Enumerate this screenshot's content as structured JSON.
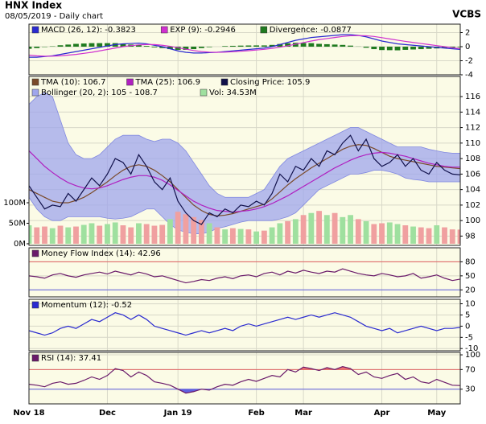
{
  "header": {
    "title": "HNX Index",
    "subtitle": "08/05/2019 - Daily chart",
    "source": "VCBS"
  },
  "chart_data": [
    {
      "type": "line",
      "ylim": [
        -4,
        3.2
      ],
      "yticks": [
        2,
        0,
        -2,
        -4
      ],
      "series": [
        {
          "name": "MACD (26, 12): -0.3823",
          "type": "line",
          "color": "#2a2ad0",
          "values": [
            -1.5,
            -1.5,
            -1.4,
            -1.3,
            -1.1,
            -0.9,
            -0.7,
            -0.5,
            -0.3,
            -0.1,
            0.1,
            0.3,
            0.4,
            0.45,
            0.5,
            0.4,
            0.2,
            0,
            -0.3,
            -0.6,
            -0.8,
            -0.9,
            -0.9,
            -0.85,
            -0.8,
            -0.7,
            -0.6,
            -0.5,
            -0.4,
            -0.3,
            -0.2,
            0,
            0.3,
            0.6,
            0.9,
            1.1,
            1.3,
            1.4,
            1.5,
            1.6,
            1.7,
            1.7,
            1.6,
            1.4,
            1.1,
            0.8,
            0.6,
            0.4,
            0.3,
            0.2,
            0.1,
            0,
            -0.1,
            -0.2,
            -0.3,
            -0.3823
          ]
        },
        {
          "name": "EXP (9): -0.2946",
          "type": "line",
          "color": "#d030d0",
          "values": [
            -1.2,
            -1.3,
            -1.35,
            -1.35,
            -1.3,
            -1.2,
            -1.1,
            -0.95,
            -0.8,
            -0.6,
            -0.4,
            -0.2,
            0,
            0.15,
            0.25,
            0.3,
            0.3,
            0.2,
            0.05,
            -0.15,
            -0.35,
            -0.55,
            -0.7,
            -0.78,
            -0.8,
            -0.78,
            -0.72,
            -0.65,
            -0.57,
            -0.48,
            -0.38,
            -0.25,
            -0.08,
            0.12,
            0.35,
            0.58,
            0.8,
            1,
            1.15,
            1.3,
            1.45,
            1.55,
            1.58,
            1.55,
            1.45,
            1.28,
            1.1,
            0.92,
            0.75,
            0.6,
            0.45,
            0.3,
            0.15,
            0,
            -0.15,
            -0.2946
          ]
        },
        {
          "name": "Divergence: -0.0877",
          "type": "bar",
          "color": "#1f7a1f",
          "values": [
            -0.3,
            -0.2,
            -0.05,
            0.05,
            0.2,
            0.3,
            0.4,
            0.45,
            0.5,
            0.5,
            0.5,
            0.5,
            0.4,
            0.3,
            0.25,
            0.1,
            -0.1,
            -0.2,
            -0.35,
            -0.45,
            -0.45,
            -0.35,
            -0.2,
            -0.07,
            0,
            0.08,
            0.12,
            0.15,
            0.17,
            0.18,
            0.18,
            0.25,
            0.38,
            0.48,
            0.55,
            0.52,
            0.5,
            0.4,
            0.35,
            0.3,
            0.25,
            0.15,
            0.02,
            -0.15,
            -0.35,
            -0.48,
            -0.5,
            -0.52,
            -0.45,
            -0.4,
            -0.35,
            -0.3,
            -0.25,
            -0.2,
            -0.15,
            -0.0877
          ]
        }
      ]
    },
    {
      "type": "line",
      "ylim": [
        96.8,
        118.6
      ],
      "yticks": [
        98,
        100,
        102,
        104,
        106,
        108,
        110,
        112,
        114,
        116
      ],
      "y2lim": [
        -4,
        408
      ],
      "y2ticks": [
        {
          "value": 100,
          "label": "100M"
        },
        {
          "value": 50,
          "label": "50M"
        },
        {
          "value": 0,
          "label": "0M"
        }
      ],
      "series": [
        {
          "name": "TMA (10): 106.7",
          "type": "line",
          "color": "#7a4a2a",
          "values": [
            104,
            103.5,
            103,
            102.5,
            102.3,
            102.3,
            102.6,
            103,
            103.6,
            104.3,
            105,
            105.8,
            106.5,
            107,
            107.2,
            107,
            106.5,
            105.8,
            105,
            104,
            103,
            102,
            101.3,
            100.8,
            100.6,
            100.7,
            100.9,
            101.2,
            101.5,
            101.8,
            102.1,
            102.8,
            103.7,
            104.6,
            105.4,
            106.1,
            106.8,
            107.4,
            108,
            108.6,
            109.2,
            109.6,
            109.8,
            109.7,
            109.3,
            108.8,
            108.3,
            108,
            107.8,
            107.6,
            107.4,
            107.2,
            107,
            106.9,
            106.8,
            106.7
          ]
        },
        {
          "name": "TMA (25): 106.9",
          "type": "line",
          "color": "#b020c0",
          "values": [
            109,
            108,
            107,
            106.2,
            105.5,
            104.9,
            104.5,
            104.2,
            104.1,
            104.2,
            104.5,
            104.9,
            105.3,
            105.6,
            105.8,
            105.8,
            105.6,
            105.2,
            104.6,
            103.9,
            103.2,
            102.5,
            102,
            101.6,
            101.3,
            101.2,
            101.1,
            101.2,
            101.3,
            101.5,
            101.8,
            102.2,
            102.7,
            103.2,
            103.8,
            104.4,
            105,
            105.6,
            106.2,
            106.8,
            107.3,
            107.8,
            108.2,
            108.5,
            108.7,
            108.8,
            108.7,
            108.5,
            108.3,
            108,
            107.7,
            107.4,
            107.2,
            107,
            106.9,
            106.9
          ]
        },
        {
          "name": "Closing Price: 105.9",
          "type": "line",
          "color": "#10104a",
          "values": [
            104.5,
            103,
            101.5,
            102,
            101.8,
            103.5,
            102.5,
            104,
            105.5,
            104.5,
            106,
            108,
            107.5,
            106,
            108.5,
            107,
            105,
            104,
            105.5,
            102.5,
            101,
            100,
            99.5,
            101,
            100.5,
            101.5,
            101,
            102,
            101.8,
            102.5,
            102,
            103.5,
            106,
            105,
            107,
            106.5,
            108,
            107,
            109,
            108.5,
            110,
            111,
            109,
            110.5,
            108,
            107,
            107.5,
            108.5,
            107,
            108,
            106.5,
            106,
            107.5,
            106.5,
            106,
            105.9
          ]
        },
        {
          "name": "Bollinger (20, 2): 105 - 108.7",
          "type": "band",
          "color": "#9fa6ec",
          "upper": [
            115,
            116,
            116.5,
            116,
            113,
            110,
            108.5,
            108,
            108,
            108.5,
            109.5,
            110.5,
            111,
            111,
            111,
            110.5,
            110.2,
            110.5,
            110.5,
            110,
            109,
            107.5,
            106,
            104.5,
            103.5,
            103,
            103,
            103,
            103,
            103.5,
            104,
            105.5,
            107,
            108,
            108.5,
            109,
            109.5,
            110,
            110.5,
            111,
            111.5,
            112,
            112,
            111.5,
            111,
            110.5,
            110,
            109.5,
            109.5,
            109.5,
            109.5,
            109.2,
            109,
            108.8,
            108.7,
            108.7
          ],
          "lower": [
            103,
            101.5,
            100.5,
            100,
            100,
            100.5,
            100.5,
            100.5,
            100.5,
            100.5,
            100.3,
            100.2,
            100.3,
            100.5,
            101,
            101.5,
            101.5,
            100.5,
            99.5,
            98.8,
            98.5,
            98.3,
            98.3,
            98.5,
            99,
            99.2,
            99.5,
            99.8,
            100,
            100,
            100,
            100,
            100.2,
            100.5,
            101,
            102,
            103,
            104,
            104.5,
            105,
            105.5,
            106,
            106,
            106.2,
            106.5,
            106.5,
            106.3,
            106,
            105.5,
            105.3,
            105.2,
            105,
            105,
            105,
            105,
            105
          ]
        },
        {
          "name": "Vol: 34.53M",
          "type": "bar",
          "axis": "y2",
          "color": "#9fe09f",
          "down_color": "#f0a0a0",
          "values": [
            45,
            40,
            42,
            38,
            44,
            40,
            42,
            46,
            50,
            44,
            48,
            52,
            45,
            40,
            50,
            48,
            44,
            46,
            60,
            78,
            72,
            65,
            58,
            50,
            40,
            35,
            38,
            36,
            35,
            30,
            32,
            40,
            50,
            55,
            60,
            70,
            75,
            80,
            70,
            75,
            65,
            70,
            60,
            55,
            48,
            50,
            52,
            48,
            45,
            42,
            40,
            38,
            45,
            40,
            35,
            34.53
          ]
        }
      ]
    },
    {
      "type": "line",
      "ylim": [
        5,
        110
      ],
      "yticks": [
        80,
        50,
        20
      ],
      "series": [
        {
          "name": "Money Flow Index (14): 42.96",
          "type": "line",
          "color": "#6a1a6a",
          "values": [
            50,
            48,
            45,
            52,
            55,
            50,
            47,
            52,
            55,
            58,
            54,
            60,
            56,
            52,
            58,
            54,
            48,
            50,
            45,
            40,
            35,
            38,
            42,
            40,
            45,
            48,
            44,
            50,
            52,
            48,
            55,
            58,
            52,
            60,
            56,
            62,
            58,
            55,
            60,
            58,
            65,
            60,
            55,
            52,
            50,
            55,
            52,
            48,
            50,
            55,
            45,
            48,
            52,
            45,
            40,
            42.96
          ]
        }
      ]
    },
    {
      "type": "line",
      "ylim": [
        -11,
        12
      ],
      "yticks": [
        10,
        5,
        0,
        -5,
        -10
      ],
      "series": [
        {
          "name": "Momentum (12): -0.52",
          "type": "line",
          "color": "#2a2ad0",
          "values": [
            -2,
            -3,
            -4,
            -3,
            -1,
            0,
            -1,
            1,
            3,
            2,
            4,
            6,
            5,
            3,
            5,
            3,
            0,
            -1,
            -2,
            -3,
            -4,
            -3,
            -2,
            -3,
            -2,
            -1,
            -2,
            0,
            1,
            0,
            1,
            2,
            3,
            4,
            3,
            4,
            5,
            4,
            5,
            6,
            5,
            4,
            2,
            0,
            -1,
            -2,
            -1,
            -3,
            -2,
            -1,
            0,
            -1,
            -2,
            -1,
            -1,
            -0.52
          ]
        }
      ]
    },
    {
      "type": "line",
      "ylim": [
        0,
        105
      ],
      "yticks": [
        100,
        70,
        30
      ],
      "categories": [
        "Nov 18",
        null,
        null,
        null,
        null,
        null,
        null,
        null,
        null,
        null,
        "Dec",
        null,
        null,
        null,
        null,
        null,
        null,
        null,
        null,
        "Jan 19",
        null,
        null,
        null,
        null,
        null,
        null,
        null,
        null,
        null,
        "Feb",
        null,
        null,
        null,
        null,
        null,
        "Mar",
        null,
        null,
        null,
        null,
        null,
        null,
        null,
        null,
        null,
        "Apr",
        null,
        null,
        null,
        null,
        null,
        null,
        "May",
        null,
        null,
        null
      ],
      "series": [
        {
          "name": "RSI (14): 37.41",
          "type": "line",
          "color": "#6a1a6a",
          "over_color": "#f07070",
          "under_color": "#6060e0",
          "values": [
            40,
            38,
            35,
            42,
            45,
            40,
            42,
            48,
            55,
            50,
            58,
            72,
            68,
            55,
            65,
            58,
            45,
            42,
            38,
            30,
            22,
            25,
            30,
            28,
            35,
            40,
            38,
            45,
            50,
            46,
            52,
            58,
            55,
            70,
            65,
            75,
            72,
            68,
            74,
            70,
            76,
            72,
            60,
            65,
            55,
            52,
            58,
            62,
            50,
            55,
            45,
            42,
            50,
            44,
            38,
            37.41
          ]
        }
      ]
    }
  ]
}
